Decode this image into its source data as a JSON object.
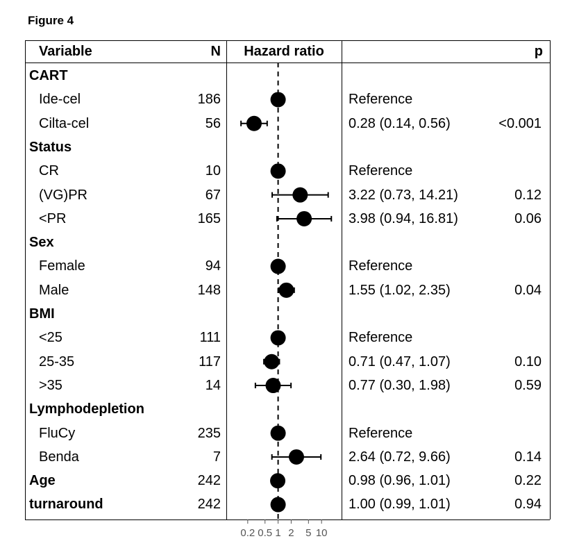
{
  "figure_label": "Figure 4",
  "headers": {
    "variable": "Variable",
    "n": "N",
    "plot": "Hazard ratio",
    "ci": "",
    "p": "p"
  },
  "chart_data": {
    "type": "forest",
    "xscale": "log",
    "xlim": [
      0.1,
      20
    ],
    "reference_line": 1,
    "xticks": [
      0.2,
      0.5,
      1,
      2,
      5,
      10
    ],
    "xtick_labels": [
      "0.2",
      "0.5",
      "1",
      "2",
      "5",
      "10"
    ],
    "rows": [
      {
        "label": "CART",
        "header": true
      },
      {
        "label": "Ide-cel",
        "n": "186",
        "hr": 1,
        "lo": null,
        "hi": null,
        "ci": "Reference",
        "p": ""
      },
      {
        "label": "Cilta-cel",
        "n": "56",
        "hr": 0.28,
        "lo": 0.14,
        "hi": 0.56,
        "ci": "0.28 (0.14, 0.56)",
        "p": "<0.001"
      },
      {
        "label": "Status",
        "header": true
      },
      {
        "label": "CR",
        "n": "10",
        "hr": 1,
        "lo": null,
        "hi": null,
        "ci": "Reference",
        "p": ""
      },
      {
        "label": "(VG)PR",
        "n": "67",
        "hr": 3.22,
        "lo": 0.73,
        "hi": 14.21,
        "ci": "3.22 (0.73, 14.21)",
        "p": "0.12"
      },
      {
        "label": "<PR",
        "n": "165",
        "hr": 3.98,
        "lo": 0.94,
        "hi": 16.81,
        "ci": "3.98 (0.94, 16.81)",
        "p": "0.06"
      },
      {
        "label": "Sex",
        "header": true
      },
      {
        "label": "Female",
        "n": "94",
        "hr": 1,
        "lo": null,
        "hi": null,
        "ci": "Reference",
        "p": ""
      },
      {
        "label": "Male",
        "n": "148",
        "hr": 1.55,
        "lo": 1.02,
        "hi": 2.35,
        "ci": "1.55 (1.02, 2.35)",
        "p": "0.04"
      },
      {
        "label": "BMI",
        "header": true
      },
      {
        "label": "<25",
        "n": "111",
        "hr": 1,
        "lo": null,
        "hi": null,
        "ci": "Reference",
        "p": ""
      },
      {
        "label": "25-35",
        "n": "117",
        "hr": 0.71,
        "lo": 0.47,
        "hi": 1.07,
        "ci": "0.71 (0.47, 1.07)",
        "p": "0.10"
      },
      {
        "label": ">35",
        "n": "14",
        "hr": 0.77,
        "lo": 0.3,
        "hi": 1.98,
        "ci": "0.77 (0.30, 1.98)",
        "p": "0.59"
      },
      {
        "label": "Lymphodepletion",
        "header": true
      },
      {
        "label": "FluCy",
        "n": "235",
        "hr": 1,
        "lo": null,
        "hi": null,
        "ci": "Reference",
        "p": ""
      },
      {
        "label": "Benda",
        "n": "7",
        "hr": 2.64,
        "lo": 0.72,
        "hi": 9.66,
        "ci": "2.64 (0.72, 9.66)",
        "p": "0.14"
      },
      {
        "label": "Age",
        "header": true,
        "bold_row": true,
        "n": "242",
        "hr": 0.98,
        "lo": 0.96,
        "hi": 1.01,
        "ci": "0.98 (0.96, 1.01)",
        "p": "0.22"
      },
      {
        "label": "turnaround",
        "header": true,
        "bold_row": true,
        "n": "242",
        "hr": 1.0,
        "lo": 0.99,
        "hi": 1.01,
        "ci": "1.00 (0.99, 1.01)",
        "p": "0.94"
      }
    ]
  }
}
